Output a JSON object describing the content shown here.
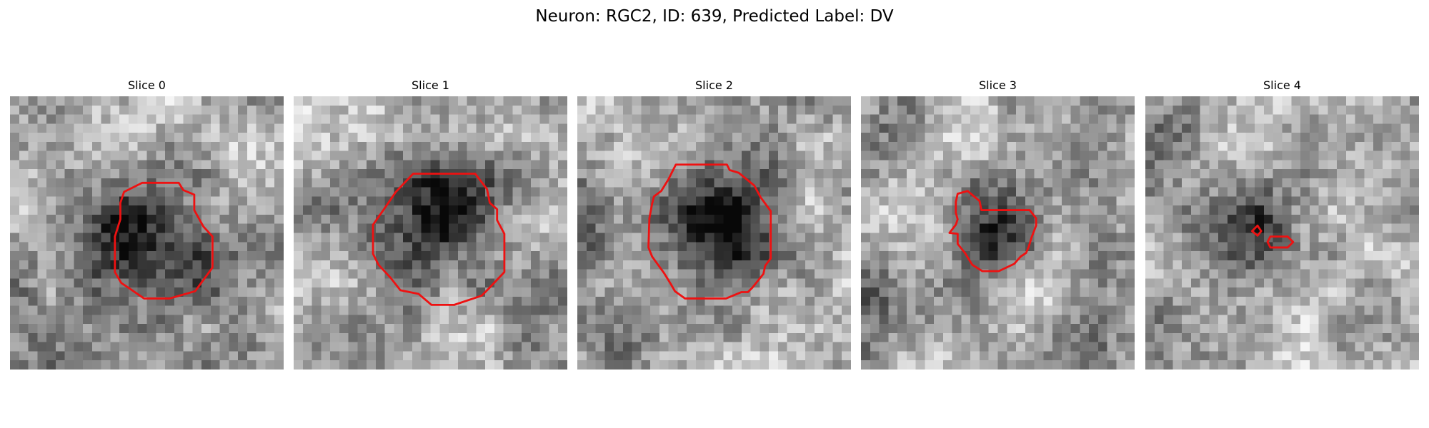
{
  "figure": {
    "title": "Neuron: RGC2, ID: 639, Predicted Label: DV",
    "contour_color": "#ee1111"
  },
  "panels": [
    {
      "title": "Slice 0",
      "dark_blobs": [
        [
          13.7,
          14.8,
          4.6,
          1.0
        ],
        [
          20.9,
          17.8,
          2.8,
          0.45
        ],
        [
          27,
          19,
          2.8,
          0.35
        ],
        [
          2,
          25,
          3.5,
          0.35
        ],
        [
          24,
          26,
          3,
          0.3
        ]
      ],
      "light_blobs": [
        [
          17,
          2,
          4,
          0.45
        ],
        [
          2,
          10,
          3,
          0.3
        ],
        [
          25,
          7,
          3,
          0.3
        ]
      ],
      "contour": [
        [
          12.5,
          10.5
        ],
        [
          14.5,
          9.5
        ],
        [
          18.5,
          9.5
        ],
        [
          19,
          10.3
        ],
        [
          20.2,
          10.8
        ],
        [
          20.2,
          12.5
        ],
        [
          21.2,
          14.3
        ],
        [
          22.2,
          15.4
        ],
        [
          22.2,
          18.8
        ],
        [
          20.3,
          21.4
        ],
        [
          17.5,
          22.2
        ],
        [
          14.7,
          22.2
        ],
        [
          13.1,
          21.1
        ],
        [
          12.2,
          20.5
        ],
        [
          11.5,
          19.3
        ],
        [
          11.5,
          15.4
        ],
        [
          12.1,
          13.5
        ],
        [
          12.1,
          11.7
        ]
      ]
    },
    {
      "title": "Slice 1",
      "dark_blobs": [
        [
          15.5,
          13.5,
          5.2,
          1.0
        ],
        [
          29,
          22,
          3,
          0.45
        ],
        [
          2,
          12,
          2.5,
          0.25
        ],
        [
          5,
          27,
          3,
          0.25
        ]
      ],
      "light_blobs": [
        [
          3,
          4,
          4,
          0.4
        ],
        [
          8,
          18,
          3,
          0.3
        ],
        [
          17,
          27,
          4,
          0.4
        ],
        [
          26,
          14,
          3,
          0.3
        ]
      ],
      "contour": [
        [
          13.1,
          8.5
        ],
        [
          19.9,
          8.5
        ],
        [
          21.2,
          10.2
        ],
        [
          21.5,
          11.7
        ],
        [
          22.3,
          12.4
        ],
        [
          22.3,
          13.6
        ],
        [
          23.1,
          15.1
        ],
        [
          23.1,
          19.3
        ],
        [
          21.4,
          21.1
        ],
        [
          20.6,
          21.9
        ],
        [
          17.6,
          22.9
        ],
        [
          15.1,
          22.9
        ],
        [
          13.7,
          21.7
        ],
        [
          11.7,
          21.3
        ],
        [
          10.6,
          19.9
        ],
        [
          9.3,
          18.5
        ],
        [
          8.7,
          17.3
        ],
        [
          8.7,
          14.1
        ],
        [
          9.9,
          12.4
        ],
        [
          11.2,
          10.5
        ]
      ]
    },
    {
      "title": "Slice 2",
      "dark_blobs": [
        [
          14.7,
          13.5,
          5.4,
          1.0
        ],
        [
          1,
          13,
          3,
          0.4
        ],
        [
          4,
          26,
          3,
          0.35
        ],
        [
          19,
          14,
          3,
          0.3
        ]
      ],
      "light_blobs": [
        [
          6,
          5,
          4,
          0.35
        ],
        [
          24,
          12,
          3,
          0.3
        ],
        [
          16,
          26,
          4,
          0.35
        ]
      ],
      "contour": [
        [
          10.8,
          7.5
        ],
        [
          16.4,
          7.5
        ],
        [
          16.7,
          8.1
        ],
        [
          17.7,
          8.4
        ],
        [
          19.4,
          9.8
        ],
        [
          20.1,
          11.1
        ],
        [
          21.2,
          12.6
        ],
        [
          21.2,
          17.8
        ],
        [
          20.6,
          18.6
        ],
        [
          20.4,
          19.5
        ],
        [
          19.2,
          21
        ],
        [
          18.7,
          21.5
        ],
        [
          18,
          21.5
        ],
        [
          16.3,
          22.2
        ],
        [
          11.8,
          22.2
        ],
        [
          10.7,
          21.4
        ],
        [
          10.3,
          20.7
        ],
        [
          9.5,
          19.4
        ],
        [
          8.2,
          17.6
        ],
        [
          7.8,
          16.6
        ],
        [
          7.9,
          13.4
        ],
        [
          8.2,
          11.8
        ],
        [
          8.4,
          11.0
        ],
        [
          9.2,
          10.4
        ],
        [
          10.0,
          9.1
        ]
      ]
    },
    {
      "title": "Slice 3",
      "dark_blobs": [
        [
          15.2,
          14.4,
          3.2,
          0.95
        ],
        [
          1,
          4,
          2.5,
          0.45
        ],
        [
          2,
          22,
          3,
          0.4
        ],
        [
          25,
          26,
          2.5,
          0.35
        ]
      ],
      "light_blobs": [
        [
          5,
          10,
          3,
          0.5
        ],
        [
          13,
          3,
          3,
          0.4
        ],
        [
          21,
          14,
          3,
          0.3
        ],
        [
          16,
          24,
          4,
          0.35
        ]
      ],
      "contour": [
        [
          10.6,
          10.7
        ],
        [
          11.7,
          10.4
        ],
        [
          13,
          11.5
        ],
        [
          13.2,
          12.5
        ],
        [
          15.2,
          12.5
        ],
        [
          16,
          12.5
        ],
        [
          18.5,
          12.5
        ],
        [
          19.2,
          13.4
        ],
        [
          19.2,
          14.2
        ],
        [
          18.7,
          15.5
        ],
        [
          18.4,
          16.5
        ],
        [
          18.1,
          17.2
        ],
        [
          17.5,
          17.6
        ],
        [
          16.8,
          18.4
        ],
        [
          15.1,
          19.2
        ],
        [
          13.3,
          19.2
        ],
        [
          12.2,
          18.5
        ],
        [
          11.4,
          17.2
        ],
        [
          10.6,
          16.2
        ],
        [
          10.6,
          15.1
        ],
        [
          9.7,
          15.0
        ],
        [
          10.4,
          14.1
        ],
        [
          10.6,
          13.5
        ],
        [
          10.4,
          12.8
        ],
        [
          10.4,
          11.6
        ]
      ]
    },
    {
      "title": "Slice 4",
      "dark_blobs": [
        [
          10.5,
          14.6,
          3.6,
          0.8
        ],
        [
          1,
          3,
          2.5,
          0.45
        ],
        [
          2,
          22,
          2.5,
          0.25
        ]
      ],
      "light_blobs": [
        [
          22,
          7,
          3,
          0.3
        ],
        [
          15,
          25,
          4,
          0.3
        ],
        [
          27,
          18,
          3,
          0.3
        ]
      ],
      "contour": [
        [
          12.3,
          14.2
        ],
        [
          12.7,
          14.8
        ],
        [
          12.3,
          15.3
        ],
        [
          11.7,
          14.8
        ]
      ],
      "contour2": [
        [
          13.7,
          15.4
        ],
        [
          15.6,
          15.4
        ],
        [
          16.2,
          16.0
        ],
        [
          15.6,
          16.6
        ],
        [
          13.7,
          16.6
        ],
        [
          13.4,
          16.0
        ]
      ]
    }
  ]
}
